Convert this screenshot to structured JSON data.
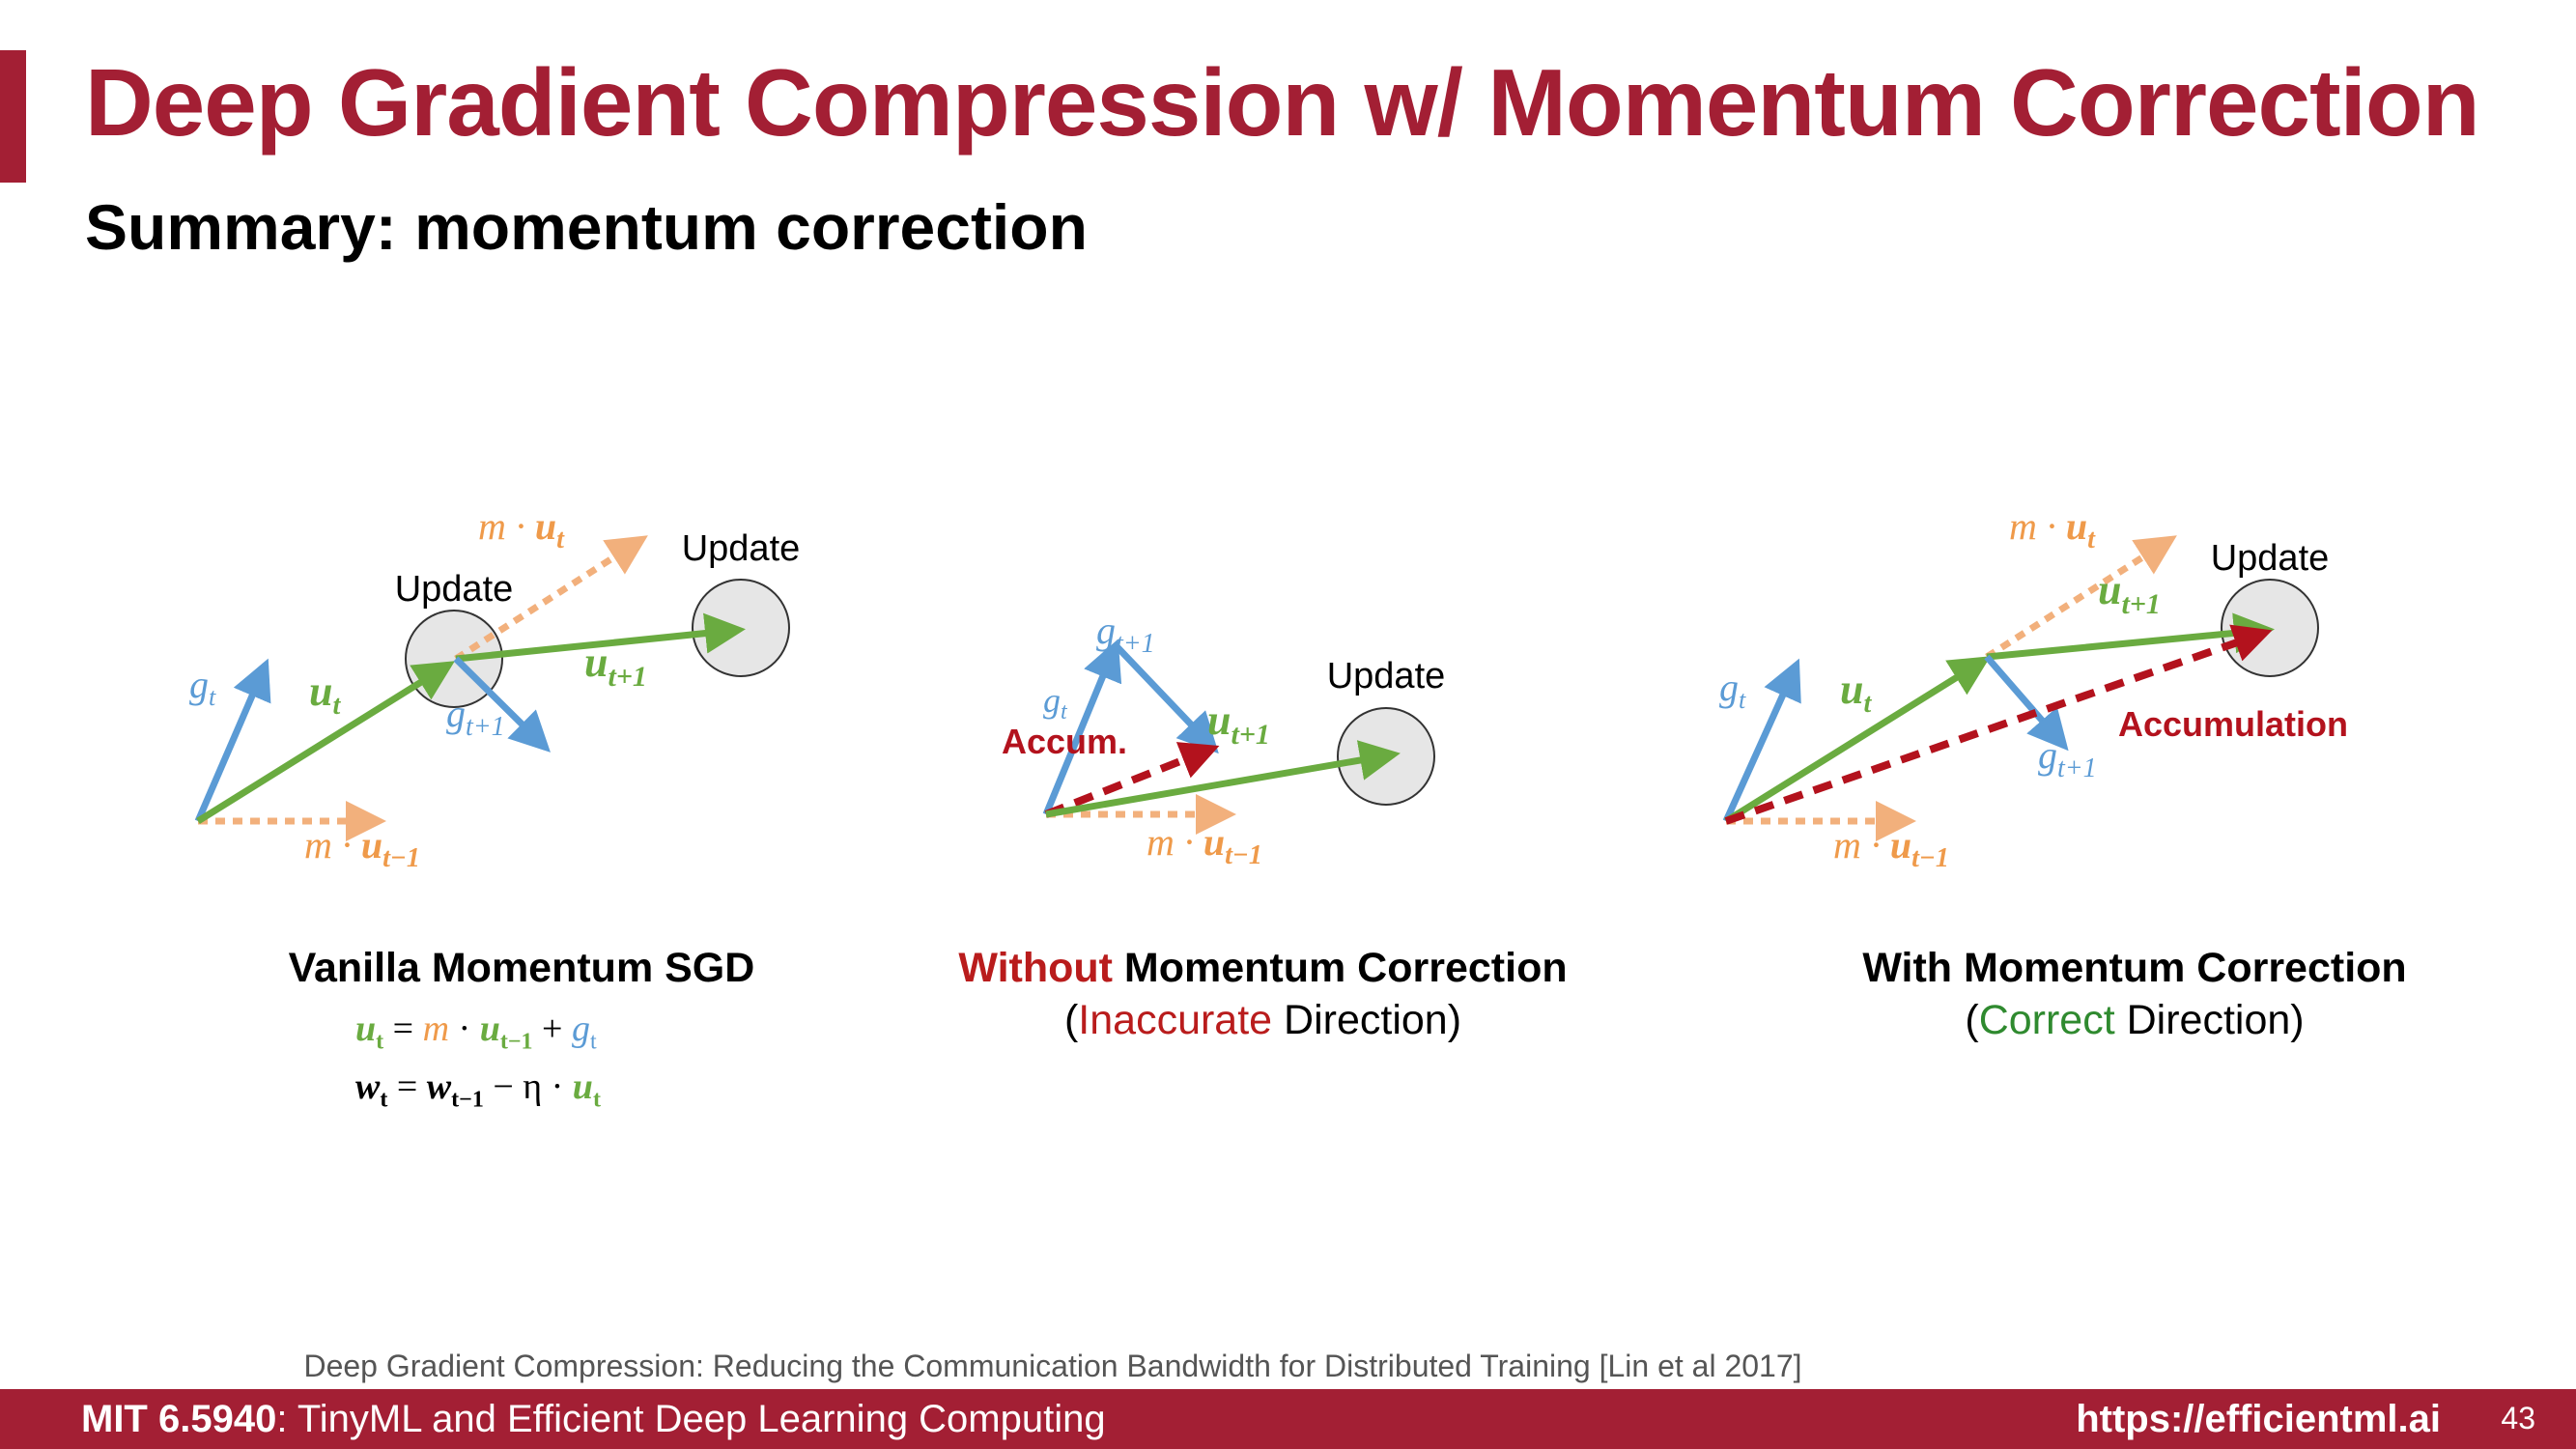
{
  "header": {
    "title": "Deep Gradient Compression w/ Momentum Correction",
    "subtitle": "Summary: momentum correction"
  },
  "colors": {
    "brand": "#a31f34",
    "gradient_arrow": "#5b9bd5",
    "momentum_arrow": "#6aab40",
    "momentum_scaled_arrow": "#f2b07c",
    "accumulation_arrow": "#b3121d",
    "update_circle_fill": "#e6e6e6"
  },
  "panels": [
    {
      "name": "vanilla",
      "labels": {
        "update_1": "Update",
        "update_2": "Update",
        "g_t": "g",
        "g_t_sub": "t",
        "u_t": "u",
        "u_t_sub": "t",
        "u_t1": "u",
        "u_t1_sub": "t+1",
        "g_t1": "g",
        "g_t1_sub": "t+1",
        "m_ut": "m · ",
        "m_ut_var": "u",
        "m_ut_sub": "t",
        "m_ut1": "m · ",
        "m_ut1_var": "u",
        "m_ut1_sub": "t−1"
      },
      "caption": {
        "title": "Vanilla Momentum SGD"
      },
      "formula": {
        "line1": [
          "u",
          "t",
          " = ",
          "m",
          " · ",
          "u",
          "t−1",
          " + ",
          "g",
          "t"
        ],
        "line2": [
          "w",
          "t",
          " = ",
          "w",
          "t−1",
          " − η · ",
          "u",
          "t"
        ]
      }
    },
    {
      "name": "without-correction",
      "labels": {
        "update": "Update",
        "g_t": "g",
        "g_t_sub": "t",
        "g_t1": "g",
        "g_t1_sub": "t+1",
        "u_t1": "u",
        "u_t1_sub": "t+1",
        "accum": "Accum.",
        "m_ut1": "m · ",
        "m_ut1_var": "u",
        "m_ut1_sub": "t−1"
      },
      "caption": {
        "title_red": "Without",
        "title_rest": " Momentum Correction",
        "line2_open": "(",
        "line2_red": "Inaccurate",
        "line2_rest": " Direction)"
      }
    },
    {
      "name": "with-correction",
      "labels": {
        "update": "Update",
        "g_t": "g",
        "g_t_sub": "t",
        "u_t": "u",
        "u_t_sub": "t",
        "u_t1": "u",
        "u_t1_sub": "t+1",
        "g_t1": "g",
        "g_t1_sub": "t+1",
        "accumulation": "Accumulation",
        "m_ut": "m · ",
        "m_ut_var": "u",
        "m_ut_sub": "t",
        "m_ut1": "m · ",
        "m_ut1_var": "u",
        "m_ut1_sub": "t−1"
      },
      "caption": {
        "title": "With Momentum Correction",
        "line2_open": "(",
        "line2_green": "Correct",
        "line2_rest": " Direction)"
      }
    }
  ],
  "reference": "Deep Gradient Compression: Reducing the Communication Bandwidth for Distributed Training [Lin et al 2017]",
  "footer": {
    "course_code": "MIT 6.5940",
    "course_name": ": TinyML and Efficient Deep Learning Computing",
    "url": "https://efficientml.ai",
    "page": "43"
  }
}
